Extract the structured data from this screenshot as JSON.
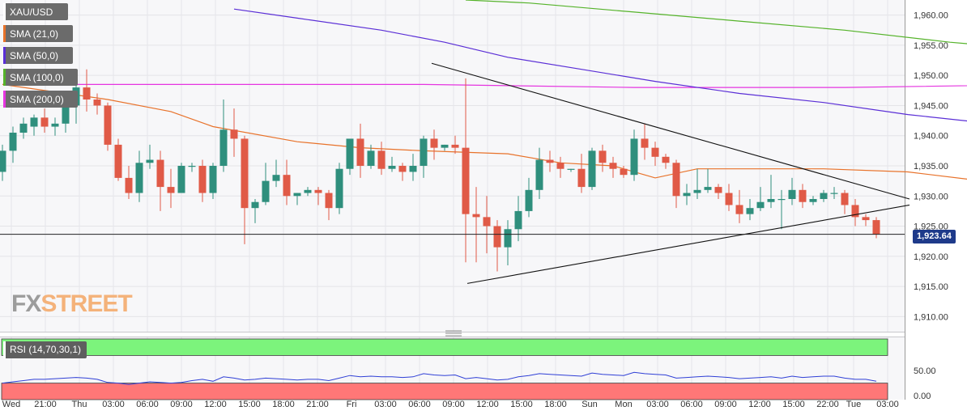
{
  "legend": [
    {
      "label": "XAU/USD",
      "color": "#ffffff"
    },
    {
      "label": "SMA (21,0)",
      "color": "#e8722a"
    },
    {
      "label": "SMA (50,0)",
      "color": "#5a2ed6"
    },
    {
      "label": "SMA (100,0)",
      "color": "#55b32a"
    },
    {
      "label": "SMA (200,0)",
      "color": "#e534e0"
    }
  ],
  "current_price": "1,923.64",
  "logo": {
    "part1": "FX",
    "part2": "STREET"
  },
  "rsi_label": "RSI (14,70,30,1)",
  "colors": {
    "up": "#2f8f7d",
    "down": "#e05a47",
    "rsi_line": "#2f3fd6",
    "overbought": "#7cf47c",
    "oversold": "#ff7777"
  },
  "chart_data": {
    "type": "candlestick",
    "symbol": "XAU/USD",
    "ylim": [
      1907.5,
      1962.5
    ],
    "y_ticks": [
      "1,960.00",
      "1,955.00",
      "1,950.00",
      "1,945.00",
      "1,940.00",
      "1,935.00",
      "1,930.00",
      "1,925.00",
      "1,920.00",
      "1,915.00",
      "1,910.00"
    ],
    "x_ticks": [
      "Wed",
      "21:00",
      "Thu",
      "03:00",
      "06:00",
      "09:00",
      "12:00",
      "15:00",
      "18:00",
      "21:00",
      "Fri",
      "03:00",
      "06:00",
      "09:00",
      "12:00",
      "15:00",
      "18:00",
      "Sun",
      "Mon",
      "03:00",
      "06:00",
      "09:00",
      "12:00",
      "15:00",
      "22:00",
      "Tue",
      "03:00"
    ],
    "candles": [
      [
        1934.0,
        1937.5,
        1932.5,
        1938.5
      ],
      [
        1937.5,
        1940.5,
        1935.5,
        1941.5
      ],
      [
        1940.5,
        1942.0,
        1939.5,
        1943.0
      ],
      [
        1941.5,
        1943.0,
        1940.0,
        1943.5
      ],
      [
        1943.0,
        1941.5,
        1940.5,
        1944.5
      ],
      [
        1941.5,
        1942.0,
        1940.0,
        1943.0
      ],
      [
        1942.0,
        1945.0,
        1940.5,
        1946.0
      ],
      [
        1945.0,
        1948.0,
        1942.0,
        1949.5
      ],
      [
        1948.0,
        1946.0,
        1944.0,
        1951.0
      ],
      [
        1946.0,
        1945.0,
        1943.5,
        1947.0
      ],
      [
        1945.0,
        1938.5,
        1937.5,
        1945.5
      ],
      [
        1938.5,
        1933.0,
        1932.5,
        1939.5
      ],
      [
        1933.0,
        1930.5,
        1929.5,
        1935.0
      ],
      [
        1930.5,
        1935.5,
        1929.0,
        1937.5
      ],
      [
        1935.5,
        1936.0,
        1934.5,
        1938.5
      ],
      [
        1936.0,
        1931.5,
        1927.5,
        1937.5
      ],
      [
        1931.5,
        1930.5,
        1928.0,
        1934.5
      ],
      [
        1930.5,
        1935.0,
        1930.5,
        1935.5
      ],
      [
        1935.0,
        1935.0,
        1934.0,
        1935.5
      ],
      [
        1935.0,
        1930.5,
        1929.0,
        1936.0
      ],
      [
        1930.5,
        1935.0,
        1929.5,
        1935.5
      ],
      [
        1935.0,
        1941.0,
        1934.0,
        1946.0
      ],
      [
        1941.0,
        1939.5,
        1936.5,
        1944.5
      ],
      [
        1939.5,
        1928.0,
        1922.0,
        1940.0
      ],
      [
        1928.0,
        1929.0,
        1925.5,
        1929.5
      ],
      [
        1929.0,
        1932.5,
        1928.5,
        1935.5
      ],
      [
        1932.5,
        1933.5,
        1931.5,
        1936.0
      ],
      [
        1933.5,
        1930.0,
        1928.5,
        1936.0
      ],
      [
        1930.0,
        1930.5,
        1928.5,
        1930.5
      ],
      [
        1930.5,
        1931.0,
        1930.0,
        1931.5
      ],
      [
        1931.0,
        1930.5,
        1928.5,
        1931.5
      ],
      [
        1930.5,
        1928.0,
        1926.0,
        1931.0
      ],
      [
        1928.0,
        1934.5,
        1927.0,
        1935.5
      ],
      [
        1934.5,
        1939.5,
        1933.5,
        1939.5
      ],
      [
        1939.5,
        1935.0,
        1933.0,
        1942.0
      ],
      [
        1935.0,
        1937.5,
        1934.5,
        1938.5
      ],
      [
        1937.5,
        1934.5,
        1933.5,
        1939.0
      ],
      [
        1934.5,
        1935.0,
        1934.0,
        1936.5
      ],
      [
        1935.0,
        1934.0,
        1932.5,
        1935.5
      ],
      [
        1934.0,
        1935.0,
        1932.5,
        1937.0
      ],
      [
        1935.0,
        1939.5,
        1933.0,
        1940.0
      ],
      [
        1939.5,
        1938.0,
        1936.0,
        1941.0
      ],
      [
        1938.0,
        1938.5,
        1937.5,
        1938.5
      ],
      [
        1938.5,
        1938.0,
        1937.0,
        1940.0
      ],
      [
        1938.0,
        1927.0,
        1919.0,
        1949.5
      ],
      [
        1927.0,
        1926.5,
        1919.0,
        1931.5
      ],
      [
        1926.5,
        1925.0,
        1920.5,
        1930.0
      ],
      [
        1925.0,
        1921.5,
        1917.5,
        1926.0
      ],
      [
        1921.5,
        1924.5,
        1918.5,
        1926.0
      ],
      [
        1924.5,
        1927.5,
        1922.5,
        1930.0
      ],
      [
        1927.5,
        1931.0,
        1926.5,
        1933.0
      ],
      [
        1931.0,
        1936.0,
        1929.5,
        1938.0
      ],
      [
        1936.0,
        1935.5,
        1934.0,
        1937.5
      ],
      [
        1935.5,
        1934.5,
        1933.0,
        1936.5
      ],
      [
        1934.5,
        1934.5,
        1934.0,
        1934.5
      ],
      [
        1934.5,
        1931.5,
        1930.5,
        1937.0
      ],
      [
        1931.5,
        1937.5,
        1931.0,
        1938.0
      ],
      [
        1937.5,
        1935.5,
        1934.0,
        1938.5
      ],
      [
        1935.5,
        1934.5,
        1933.0,
        1936.5
      ],
      [
        1934.5,
        1933.5,
        1933.0,
        1935.0
      ],
      [
        1933.5,
        1939.5,
        1932.5,
        1941.0
      ],
      [
        1939.5,
        1938.0,
        1936.0,
        1942.0
      ],
      [
        1938.0,
        1936.5,
        1935.0,
        1939.0
      ],
      [
        1936.5,
        1935.5,
        1934.5,
        1937.0
      ],
      [
        1935.5,
        1930.0,
        1928.0,
        1936.0
      ],
      [
        1930.0,
        1930.5,
        1928.5,
        1932.0
      ],
      [
        1930.5,
        1931.0,
        1929.5,
        1934.5
      ],
      [
        1931.0,
        1931.5,
        1930.5,
        1934.5
      ],
      [
        1931.5,
        1930.5,
        1929.5,
        1932.0
      ],
      [
        1930.5,
        1928.5,
        1927.5,
        1932.0
      ],
      [
        1928.5,
        1927.0,
        1925.5,
        1931.0
      ],
      [
        1927.0,
        1928.0,
        1926.0,
        1929.5
      ],
      [
        1928.0,
        1929.0,
        1927.5,
        1931.5
      ],
      [
        1929.0,
        1929.5,
        1928.0,
        1933.5
      ],
      [
        1929.5,
        1929.5,
        1924.5,
        1931.0
      ],
      [
        1929.5,
        1931.0,
        1928.5,
        1933.0
      ],
      [
        1931.0,
        1929.0,
        1928.0,
        1932.0
      ],
      [
        1929.0,
        1929.5,
        1928.5,
        1930.0
      ],
      [
        1929.5,
        1930.5,
        1929.0,
        1931.0
      ],
      [
        1930.5,
        1930.5,
        1929.5,
        1931.5
      ],
      [
        1930.5,
        1928.5,
        1927.0,
        1931.0
      ],
      [
        1928.5,
        1926.5,
        1925.0,
        1929.5
      ],
      [
        1926.5,
        1926.0,
        1925.0,
        1927.0
      ],
      [
        1926.0,
        1923.64,
        1923.0,
        1926.5
      ]
    ],
    "sma21": [
      [
        0,
        1948.5
      ],
      [
        10,
        1946.0
      ],
      [
        16,
        1944.0
      ],
      [
        20,
        1941.5
      ],
      [
        28,
        1939.0
      ],
      [
        34,
        1938.0
      ],
      [
        40,
        1937.5
      ],
      [
        48,
        1937.0
      ],
      [
        53,
        1935.5
      ],
      [
        58,
        1935.0
      ],
      [
        62,
        1933.0
      ],
      [
        66,
        1934.5
      ],
      [
        72,
        1934.5
      ],
      [
        78,
        1934.5
      ],
      [
        86,
        1934.0
      ],
      [
        93,
        1932.5
      ],
      [
        100,
        1933.0
      ],
      [
        106,
        1932.0
      ],
      [
        112,
        1933.0
      ],
      [
        118,
        1933.5
      ],
      [
        124,
        1933.0
      ],
      [
        130,
        1932.0
      ],
      [
        134,
        1931.0
      ],
      [
        138,
        1931.5
      ],
      [
        144,
        1931.5
      ],
      [
        150,
        1931.0
      ],
      [
        156,
        1932.5
      ],
      [
        162,
        1932.5
      ],
      [
        166,
        1931.5
      ],
      [
        169,
        1929.5
      ]
    ],
    "sma50": [
      [
        22,
        1961.0
      ],
      [
        28,
        1959.5
      ],
      [
        36,
        1957.5
      ],
      [
        42,
        1955.5
      ],
      [
        48,
        1953.0
      ],
      [
        55,
        1951.0
      ],
      [
        62,
        1949.0
      ],
      [
        70,
        1947.0
      ],
      [
        78,
        1945.5
      ],
      [
        86,
        1943.5
      ],
      [
        94,
        1942.0
      ],
      [
        102,
        1940.5
      ],
      [
        110,
        1939.5
      ],
      [
        118,
        1938.5
      ],
      [
        126,
        1937.5
      ],
      [
        134,
        1936.0
      ],
      [
        142,
        1935.0
      ],
      [
        150,
        1934.0
      ],
      [
        158,
        1933.5
      ],
      [
        164,
        1933.0
      ],
      [
        169,
        1932.0
      ]
    ],
    "sma100": [
      [
        44,
        1962.5
      ],
      [
        50,
        1962.0
      ],
      [
        60,
        1960.5
      ],
      [
        70,
        1959.0
      ],
      [
        80,
        1957.5
      ],
      [
        90,
        1955.5
      ],
      [
        100,
        1954.0
      ],
      [
        110,
        1952.5
      ],
      [
        120,
        1951.0
      ],
      [
        130,
        1949.0
      ],
      [
        140,
        1946.5
      ],
      [
        150,
        1944.0
      ],
      [
        160,
        1941.5
      ],
      [
        169,
        1939.5
      ]
    ],
    "sma200": [
      [
        0,
        1948.5
      ],
      [
        20,
        1948.5
      ],
      [
        40,
        1948.5
      ],
      [
        60,
        1948.0
      ],
      [
        80,
        1948.0
      ],
      [
        100,
        1948.5
      ],
      [
        120,
        1948.5
      ],
      [
        140,
        1949.0
      ],
      [
        160,
        1949.5
      ],
      [
        169,
        1949.3
      ]
    ],
    "trendlines": [
      {
        "from": [
          533,
          1952.0
        ],
        "to": [
          1123,
          1929.5
        ]
      },
      {
        "from": [
          577,
          1915.5
        ],
        "to": [
          1123,
          1928.5
        ]
      }
    ],
    "horizontal_line": 1923.64,
    "rsi": {
      "label": "RSI (14,70,30,1)",
      "ylim": [
        0,
        100
      ],
      "y_ticks": [
        "50.00",
        "0.00"
      ],
      "overbought": 70,
      "oversold": 30,
      "values": [
        30,
        32,
        34,
        36,
        36,
        37,
        38,
        39,
        38,
        36,
        31,
        30,
        28,
        30,
        32,
        31,
        30,
        31,
        34,
        36,
        33,
        40,
        38,
        35,
        36,
        38,
        37,
        36,
        35,
        36,
        36,
        34,
        38,
        42,
        40,
        41,
        40,
        40,
        39,
        40,
        45,
        43,
        42,
        43,
        37,
        39,
        37,
        35,
        36,
        40,
        42,
        45,
        44,
        43,
        42,
        41,
        46,
        44,
        43,
        42,
        47,
        45,
        44,
        43,
        38,
        39,
        40,
        41,
        40,
        39,
        37,
        38,
        39,
        40,
        38,
        41,
        39,
        40,
        41,
        41,
        38,
        36,
        36,
        33
      ]
    }
  }
}
